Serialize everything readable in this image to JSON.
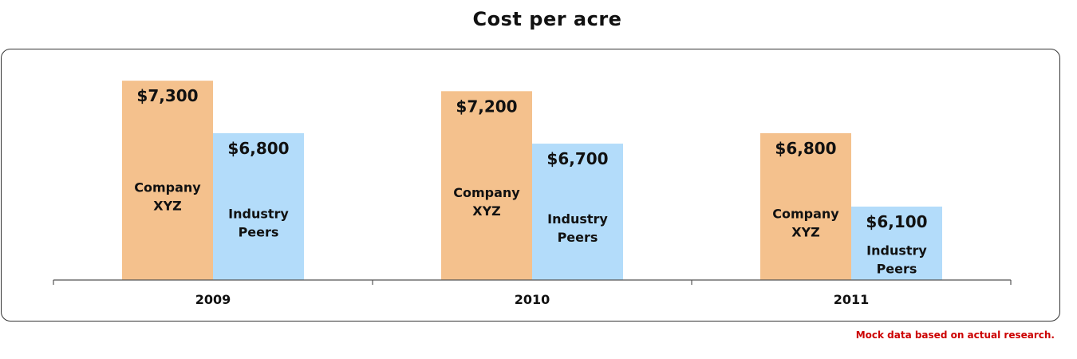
{
  "chart_data": {
    "type": "bar",
    "title": "Cost per acre",
    "xlabel": "",
    "ylabel": "",
    "categories": [
      "2009",
      "2010",
      "2011"
    ],
    "series": [
      {
        "name_lines": [
          "Company",
          "XYZ"
        ],
        "values": [
          7300,
          7200,
          6800
        ],
        "value_labels": [
          "$7,300",
          "$7,200",
          "$6,800"
        ],
        "color": "#f4c18d"
      },
      {
        "name_lines": [
          "Industry",
          "Peers"
        ],
        "values": [
          6800,
          6700,
          6100
        ],
        "value_labels": [
          "$6,800",
          "$6,700",
          "$6,100"
        ],
        "color": "#b3dcfa"
      }
    ],
    "ylim": [
      5400,
      7400
    ],
    "grid": false,
    "legend": "none"
  },
  "footnote": "Mock data based on actual research."
}
